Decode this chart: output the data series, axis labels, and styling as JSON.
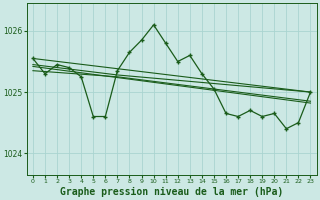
{
  "background_color": "#cce8e4",
  "grid_color": "#aad4d0",
  "line_color": "#1a5c1a",
  "xlabel": "Graphe pression niveau de la mer (hPa)",
  "xlim": [
    -0.5,
    23.5
  ],
  "ylim": [
    1023.65,
    1026.45
  ],
  "yticks": [
    1024,
    1025,
    1026
  ],
  "xticks": [
    0,
    1,
    2,
    3,
    4,
    5,
    6,
    7,
    8,
    9,
    10,
    11,
    12,
    13,
    14,
    15,
    16,
    17,
    18,
    19,
    20,
    21,
    22,
    23
  ],
  "main_line": {
    "x": [
      0,
      1,
      2,
      3,
      4,
      5,
      6,
      7,
      8,
      9,
      10,
      11,
      12,
      13,
      14,
      15,
      16,
      17,
      18,
      19,
      20,
      21,
      22,
      23
    ],
    "y": [
      1025.55,
      1025.3,
      1025.45,
      1025.4,
      1025.25,
      1024.6,
      1024.6,
      1025.35,
      1025.65,
      1025.85,
      1026.1,
      1025.8,
      1025.5,
      1025.6,
      1025.3,
      1025.05,
      1024.65,
      1024.6,
      1024.7,
      1024.6,
      1024.65,
      1024.4,
      1024.5,
      1025.0
    ]
  },
  "trend_lines": [
    {
      "x": [
        0,
        7,
        23
      ],
      "y": [
        1025.55,
        1025.3,
        1025.0
      ]
    },
    {
      "x": [
        0,
        7,
        23
      ],
      "y": [
        1025.45,
        1025.28,
        1024.95
      ]
    },
    {
      "x": [
        0,
        7,
        23
      ],
      "y": [
        1025.35,
        1025.25,
        1024.85
      ]
    },
    {
      "x": [
        0,
        23
      ],
      "y": [
        1025.55,
        1025.0
      ]
    }
  ]
}
